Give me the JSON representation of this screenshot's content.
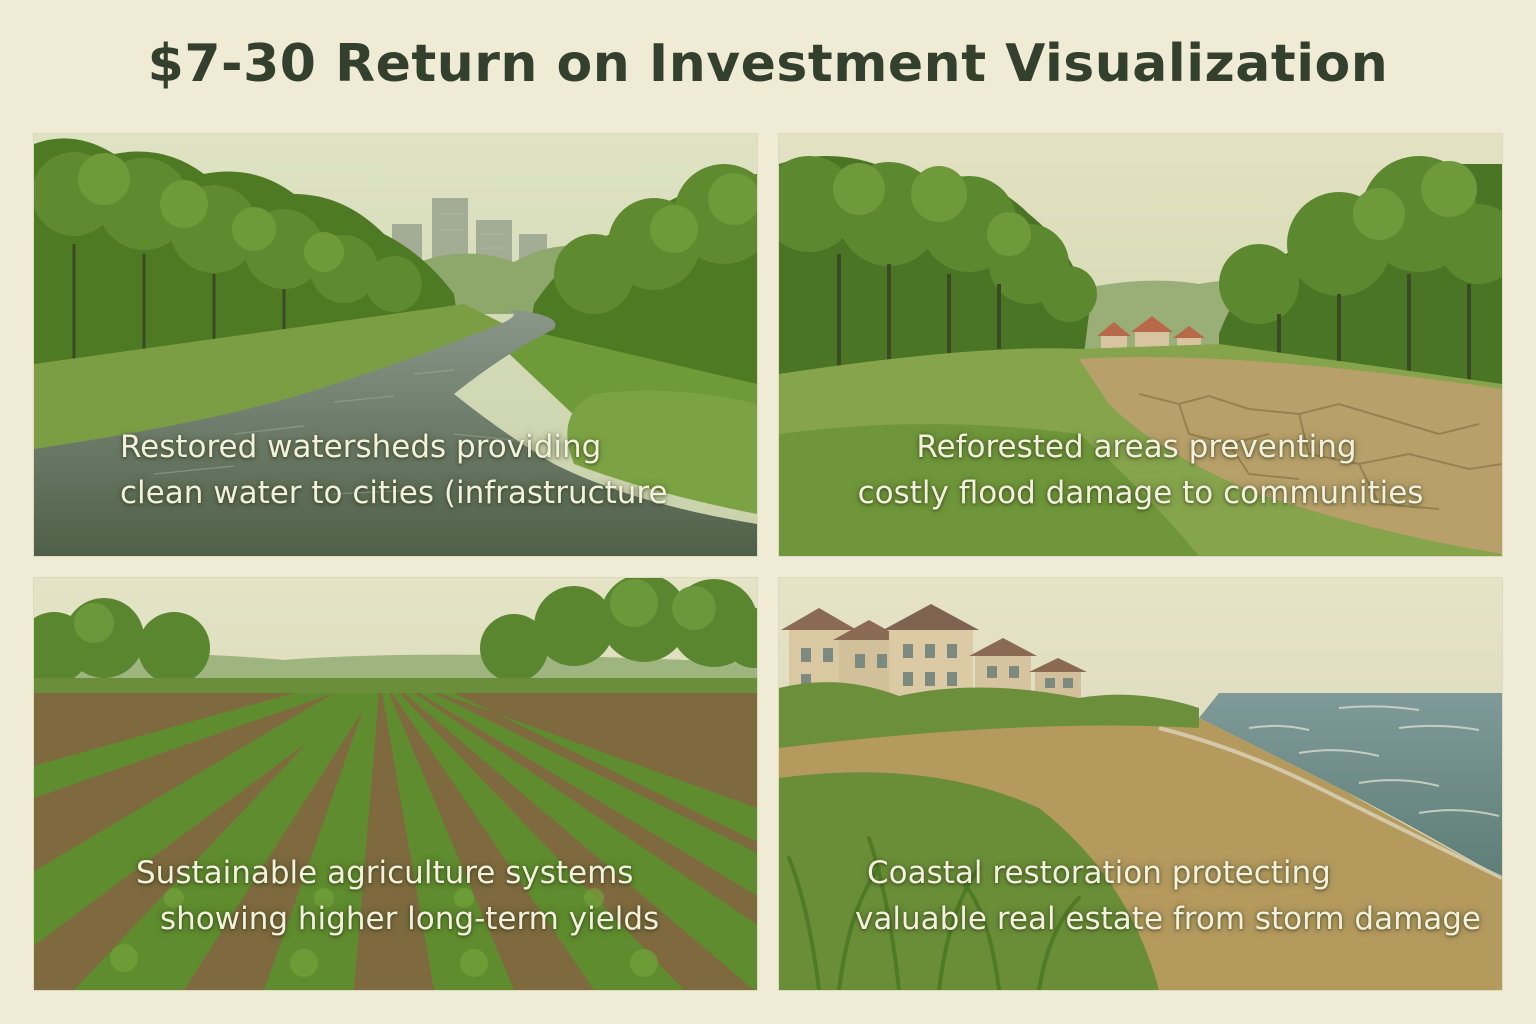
{
  "title": "$7-30 Return on Investment Visualization",
  "panels": [
    {
      "scene": "river-watershed-city",
      "caption_line1": "Restored watersheds providing",
      "caption_line2": "clean water to cities (infrastructure"
    },
    {
      "scene": "reforested-floodplain-village",
      "caption_line1": "Reforested areas preventing",
      "caption_line2": "costly flood damage to communities"
    },
    {
      "scene": "crop-rows-field",
      "caption_line1": "Sustainable agriculture systems",
      "caption_line2": "showing higher long-term yields"
    },
    {
      "scene": "coastal-houses-beach",
      "caption_line1": "Coastal restoration protecting",
      "caption_line2": "valuable real estate from storm damage"
    }
  ],
  "colors": {
    "background": "#f0ebd5",
    "title": "#34402e",
    "caption": "#f3f0dc",
    "foliage": "#5f8a30",
    "water": "#5e6e58",
    "sand": "#b59a5e"
  }
}
